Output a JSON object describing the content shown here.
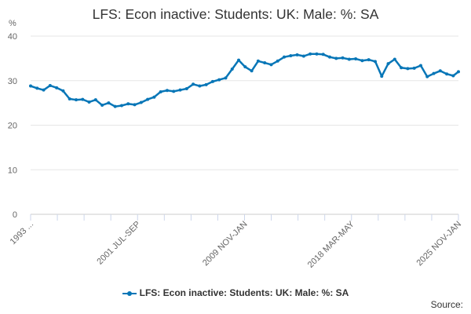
{
  "chart_data": {
    "type": "line",
    "title": "LFS: Econ inactive: Students: UK: Male: %: SA",
    "ylabel": "%",
    "xlabel": "",
    "ylim": [
      0,
      40
    ],
    "yticks": [
      0,
      10,
      20,
      30,
      40
    ],
    "x_tick_labels": [
      "1993 ...",
      "2001 JUL-SEP",
      "2009 NOV-JAN",
      "2018 MAR-MAY",
      "2025 NOV-JAN"
    ],
    "grid": true,
    "legend_position": "bottom",
    "color": "#0776b7",
    "series": [
      {
        "name": "LFS: Econ inactive: Students: UK: Male: %: SA",
        "x": [
          1993.0,
          1993.5,
          1994.0,
          1994.5,
          1995.0,
          1995.5,
          1996.0,
          1996.5,
          1997.0,
          1997.5,
          1998.0,
          1998.5,
          1999.0,
          1999.5,
          2000.0,
          2000.5,
          2001.0,
          2001.5,
          2002.0,
          2002.5,
          2003.0,
          2003.5,
          2004.0,
          2004.5,
          2005.0,
          2005.5,
          2006.0,
          2006.5,
          2007.0,
          2007.5,
          2008.0,
          2008.5,
          2009.0,
          2009.5,
          2010.0,
          2010.5,
          2011.0,
          2011.5,
          2012.0,
          2012.5,
          2013.0,
          2013.5,
          2014.0,
          2014.5,
          2015.0,
          2015.5,
          2016.0,
          2016.5,
          2017.0,
          2017.5,
          2018.0,
          2018.5,
          2019.0,
          2019.5,
          2020.0,
          2020.5,
          2021.0,
          2021.5,
          2022.0,
          2022.5,
          2023.0,
          2023.5,
          2024.0,
          2024.5,
          2025.0,
          2025.5,
          2025.9
        ],
        "values": [
          28.8,
          28.3,
          27.9,
          28.9,
          28.4,
          27.7,
          25.9,
          25.7,
          25.8,
          25.2,
          25.7,
          24.5,
          25.0,
          24.2,
          24.4,
          24.8,
          24.6,
          25.1,
          25.8,
          26.3,
          27.5,
          27.8,
          27.6,
          27.9,
          28.2,
          29.2,
          28.8,
          29.1,
          29.8,
          30.2,
          30.6,
          32.6,
          34.6,
          33.1,
          32.2,
          34.4,
          34.0,
          33.6,
          34.4,
          35.3,
          35.6,
          35.8,
          35.5,
          36.0,
          36.0,
          35.9,
          35.3,
          35.0,
          35.1,
          34.8,
          34.9,
          34.5,
          34.7,
          34.3,
          31.0,
          33.8,
          34.8,
          32.9,
          32.7,
          32.8,
          33.4,
          30.9,
          31.6,
          32.2,
          31.5,
          31.1,
          32.0
        ]
      }
    ]
  },
  "source_label": "Source:"
}
